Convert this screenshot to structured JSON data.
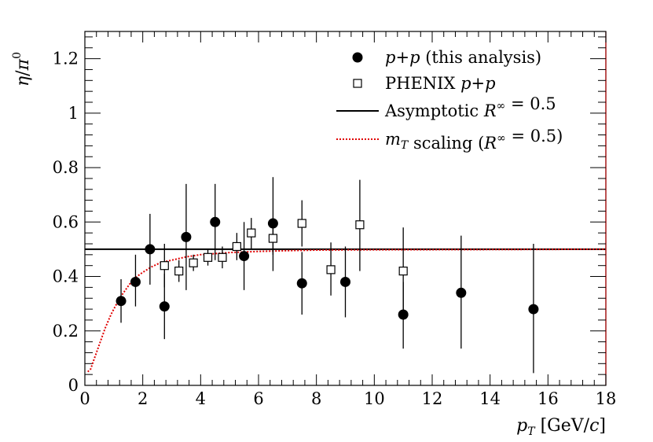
{
  "chart_data": {
    "type": "scatter",
    "title": "",
    "xlabel": {
      "symbol": "p",
      "sub": "T",
      "unit": " [GeV/",
      "unit_var": "c",
      "unit_end": "]"
    },
    "ylabel": {
      "num": "η",
      "sep": "/",
      "den": "π",
      "sup": "0"
    },
    "xlim": [
      0,
      18
    ],
    "ylim": [
      0,
      1.3
    ],
    "x_ticks": [
      0,
      2,
      4,
      6,
      8,
      10,
      12,
      14,
      16,
      18
    ],
    "x_tick_labels": [
      "0",
      "2",
      "4",
      "6",
      "8",
      "10",
      "12",
      "14",
      "16",
      "18"
    ],
    "y_ticks": [
      0,
      0.2,
      0.4,
      0.6,
      0.8,
      1.0,
      1.2
    ],
    "y_tick_labels": [
      "0",
      "0.2",
      "0.4",
      "0.6",
      "0.8",
      "1",
      "1.2"
    ],
    "grid": false,
    "legend_position": "top-right",
    "series": [
      {
        "name": "p+p (this analysis)",
        "marker": "filled-circle",
        "color": "#000000",
        "points": [
          {
            "x": 1.25,
            "y": 0.31,
            "lo": 0.23,
            "hi": 0.39
          },
          {
            "x": 1.75,
            "y": 0.38,
            "lo": 0.29,
            "hi": 0.48
          },
          {
            "x": 2.25,
            "y": 0.5,
            "lo": 0.37,
            "hi": 0.63
          },
          {
            "x": 2.75,
            "y": 0.29,
            "lo": 0.17,
            "hi": 0.41
          },
          {
            "x": 3.5,
            "y": 0.545,
            "lo": 0.35,
            "hi": 0.74
          },
          {
            "x": 4.5,
            "y": 0.6,
            "lo": 0.46,
            "hi": 0.74
          },
          {
            "x": 5.5,
            "y": 0.475,
            "lo": 0.35,
            "hi": 0.6
          },
          {
            "x": 6.5,
            "y": 0.595,
            "lo": 0.42,
            "hi": 0.765
          },
          {
            "x": 7.5,
            "y": 0.375,
            "lo": 0.26,
            "hi": 0.49
          },
          {
            "x": 9.0,
            "y": 0.38,
            "lo": 0.25,
            "hi": 0.51
          },
          {
            "x": 11.0,
            "y": 0.26,
            "lo": 0.135,
            "hi": 0.38
          },
          {
            "x": 13.0,
            "y": 0.34,
            "lo": 0.135,
            "hi": 0.55
          },
          {
            "x": 15.5,
            "y": 0.28,
            "lo": 0.045,
            "hi": 0.52
          }
        ]
      },
      {
        "name": "PHENIX p+p",
        "marker": "open-square",
        "color": "#000000",
        "points": [
          {
            "x": 2.75,
            "y": 0.44,
            "lo": 0.36,
            "hi": 0.52
          },
          {
            "x": 3.25,
            "y": 0.42,
            "lo": 0.38,
            "hi": 0.46
          },
          {
            "x": 3.75,
            "y": 0.45,
            "lo": 0.42,
            "hi": 0.48
          },
          {
            "x": 4.25,
            "y": 0.47,
            "lo": 0.44,
            "hi": 0.5
          },
          {
            "x": 4.75,
            "y": 0.47,
            "lo": 0.43,
            "hi": 0.51
          },
          {
            "x": 5.25,
            "y": 0.51,
            "lo": 0.46,
            "hi": 0.56
          },
          {
            "x": 5.75,
            "y": 0.56,
            "lo": 0.5,
            "hi": 0.615
          },
          {
            "x": 6.5,
            "y": 0.54,
            "lo": 0.48,
            "hi": 0.6
          },
          {
            "x": 7.5,
            "y": 0.595,
            "lo": 0.51,
            "hi": 0.68
          },
          {
            "x": 8.5,
            "y": 0.425,
            "lo": 0.33,
            "hi": 0.525
          },
          {
            "x": 9.5,
            "y": 0.59,
            "lo": 0.42,
            "hi": 0.755
          },
          {
            "x": 11.0,
            "y": 0.42,
            "lo": 0.26,
            "hi": 0.58
          }
        ]
      },
      {
        "name": "Asymptotic R∞ = 0.5",
        "type": "hline",
        "value": 0.5,
        "color": "#000000"
      },
      {
        "name": "mT scaling (R∞ = 0.5)",
        "type": "curve",
        "style": "dotted",
        "color": "#e00000",
        "points": [
          [
            0.1,
            0.05
          ],
          [
            0.2,
            0.06
          ],
          [
            0.3,
            0.09
          ],
          [
            0.4,
            0.12
          ],
          [
            0.5,
            0.15
          ],
          [
            0.6,
            0.18
          ],
          [
            0.7,
            0.21
          ],
          [
            0.8,
            0.235
          ],
          [
            0.9,
            0.26
          ],
          [
            1.0,
            0.28
          ],
          [
            1.2,
            0.32
          ],
          [
            1.4,
            0.35
          ],
          [
            1.6,
            0.38
          ],
          [
            1.8,
            0.4
          ],
          [
            2.0,
            0.415
          ],
          [
            2.3,
            0.435
          ],
          [
            2.6,
            0.45
          ],
          [
            3.0,
            0.46
          ],
          [
            3.5,
            0.472
          ],
          [
            4.0,
            0.48
          ],
          [
            5.0,
            0.488
          ],
          [
            6.0,
            0.492
          ],
          [
            7.0,
            0.495
          ],
          [
            8.0,
            0.497
          ],
          [
            10.0,
            0.498
          ],
          [
            14.0,
            0.499
          ],
          [
            18.0,
            0.5
          ]
        ]
      }
    ],
    "legend": [
      {
        "marker": "filled-circle",
        "parts": [
          [
            "p",
            "i"
          ],
          [
            "+",
            "n"
          ],
          [
            "p",
            "i"
          ],
          [
            " (this analysis)",
            "n"
          ]
        ]
      },
      {
        "marker": "open-square",
        "parts": [
          [
            "PHENIX ",
            "n"
          ],
          [
            "p",
            "i"
          ],
          [
            "+",
            "n"
          ],
          [
            "p",
            "i"
          ]
        ]
      },
      {
        "marker": "solid-line",
        "parts": [
          [
            "Asymptotic ",
            "n"
          ],
          [
            "R",
            "i"
          ],
          [
            "∞",
            "sup"
          ],
          [
            " = 0.5",
            "n"
          ]
        ]
      },
      {
        "marker": "red-dotted-line",
        "parts": [
          [
            "m",
            "i"
          ],
          [
            "T",
            "sub"
          ],
          [
            " scaling (",
            "n"
          ],
          [
            "R",
            "i"
          ],
          [
            "∞",
            "sup"
          ],
          [
            " = 0.5)",
            "n"
          ]
        ]
      }
    ]
  }
}
